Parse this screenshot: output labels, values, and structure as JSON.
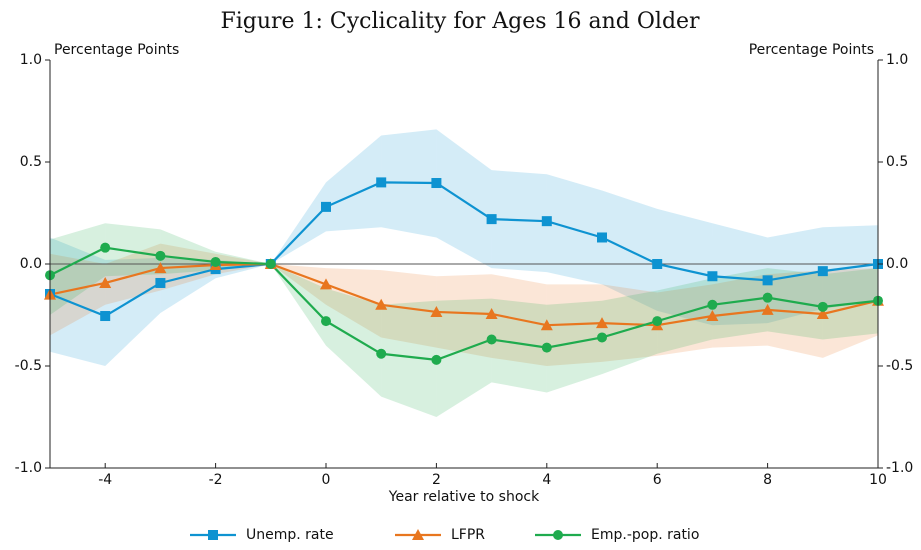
{
  "chart_data": {
    "type": "line",
    "title": "Figure 1: Cyclicality for Ages 16 and Older",
    "ylabel": "Percentage Points",
    "y2label": "Percentage Points",
    "xlabel": "Year relative to shock",
    "x": [
      -5,
      -4,
      -3,
      -2,
      -1,
      0,
      1,
      2,
      3,
      4,
      5,
      6,
      7,
      8,
      9,
      10
    ],
    "xlim": [
      -5,
      10
    ],
    "xticks": [
      -4,
      -2,
      0,
      2,
      4,
      6,
      8,
      10
    ],
    "ylim": [
      -1,
      1
    ],
    "yticks": [
      {
        "value": -1,
        "label": "-1.0"
      },
      {
        "value": -0.5,
        "label": "-0.5"
      },
      {
        "value": 0,
        "label": "0.0"
      },
      {
        "value": 0.5,
        "label": "0.5"
      },
      {
        "value": 1,
        "label": "1.0"
      }
    ],
    "y2lim": [
      -1,
      1
    ],
    "y2ticks": [
      {
        "value": -1,
        "label": "-1.0"
      },
      {
        "value": -0.5,
        "label": "-0.5"
      },
      {
        "value": 0,
        "label": "0.0"
      },
      {
        "value": 0.5,
        "label": "0.5"
      },
      {
        "value": 1,
        "label": "1.0"
      }
    ],
    "legend": "bottom",
    "series": [
      {
        "name": "Unemp. rate",
        "color": "#0e93d1",
        "marker": "square",
        "values": [
          -0.147,
          -0.255,
          -0.093,
          -0.025,
          0,
          0.28,
          0.4,
          0.397,
          0.22,
          0.21,
          0.13,
          0,
          -0.06,
          -0.08,
          -0.035,
          0
        ],
        "upper": [
          0.13,
          0.02,
          0.03,
          0.02,
          0,
          0.4,
          0.63,
          0.66,
          0.46,
          0.44,
          0.36,
          0.27,
          0.2,
          0.13,
          0.18,
          0.19
        ],
        "lower": [
          -0.43,
          -0.5,
          -0.24,
          -0.07,
          0,
          0.16,
          0.18,
          0.13,
          -0.02,
          -0.04,
          -0.1,
          -0.23,
          -0.3,
          -0.29,
          -0.22,
          -0.18
        ]
      },
      {
        "name": "LFPR",
        "color": "#e8761f",
        "marker": "triangle",
        "values": [
          -0.15,
          -0.093,
          -0.02,
          -0.005,
          0,
          -0.1,
          -0.2,
          -0.235,
          -0.245,
          -0.3,
          -0.29,
          -0.3,
          -0.255,
          -0.225,
          -0.245,
          -0.18
        ],
        "upper": [
          0.05,
          0.0,
          0.1,
          0.05,
          0,
          -0.02,
          -0.03,
          -0.06,
          -0.05,
          -0.1,
          -0.1,
          -0.14,
          -0.1,
          -0.05,
          -0.03,
          -0.02
        ],
        "lower": [
          -0.35,
          -0.2,
          -0.13,
          -0.05,
          0,
          -0.2,
          -0.36,
          -0.41,
          -0.46,
          -0.5,
          -0.48,
          -0.45,
          -0.41,
          -0.4,
          -0.46,
          -0.35
        ]
      },
      {
        "name": "Emp.-pop. ratio",
        "color": "#1fab4e",
        "marker": "circle",
        "values": [
          -0.055,
          0.08,
          0.04,
          0.01,
          0,
          -0.28,
          -0.44,
          -0.47,
          -0.37,
          -0.41,
          -0.36,
          -0.28,
          -0.2,
          -0.165,
          -0.21,
          -0.18
        ],
        "upper": [
          0.12,
          0.2,
          0.17,
          0.06,
          0,
          -0.12,
          -0.2,
          -0.18,
          -0.17,
          -0.2,
          -0.18,
          -0.13,
          -0.07,
          -0.02,
          -0.05,
          -0.02
        ],
        "lower": [
          -0.25,
          -0.06,
          -0.05,
          -0.03,
          0,
          -0.4,
          -0.65,
          -0.75,
          -0.58,
          -0.63,
          -0.54,
          -0.44,
          -0.37,
          -0.33,
          -0.37,
          -0.34
        ]
      }
    ]
  }
}
